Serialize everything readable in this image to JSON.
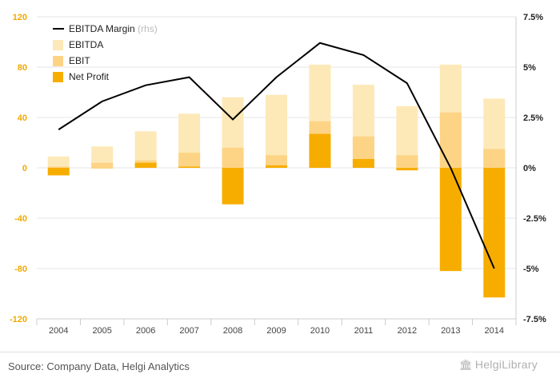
{
  "chart_data": {
    "type": "bar",
    "categories": [
      "2004",
      "2005",
      "2006",
      "2007",
      "2008",
      "2009",
      "2010",
      "2011",
      "2012",
      "2013",
      "2014"
    ],
    "series": [
      {
        "name": "EBITDA",
        "kind": "bar",
        "axis": "left",
        "color": "#fde9b8",
        "values": [
          9,
          17,
          29,
          43,
          56,
          58,
          82,
          66,
          49,
          82,
          55
        ]
      },
      {
        "name": "EBIT",
        "kind": "bar",
        "axis": "left",
        "color": "#fdd486",
        "values": [
          1,
          4,
          6,
          12,
          16,
          10,
          37,
          25,
          10,
          44,
          15
        ]
      },
      {
        "name": "Net Profit",
        "kind": "bar",
        "axis": "left",
        "color": "#f7ad00",
        "values": [
          -6,
          0,
          4,
          1,
          -29,
          2,
          27,
          7,
          -2,
          -82,
          -103
        ]
      },
      {
        "name": "EBITDA Margin",
        "kind": "line",
        "axis": "right",
        "color": "#000000",
        "values": [
          1.9,
          3.3,
          4.1,
          4.5,
          2.4,
          4.5,
          6.2,
          5.6,
          4.2,
          0.0,
          -5.0
        ]
      }
    ],
    "legend": [
      {
        "label": "EBITDA Margin",
        "suffix": "(rhs)",
        "marker": "line",
        "color": "#000000"
      },
      {
        "label": "EBITDA",
        "marker": "box",
        "color": "#fde9b8"
      },
      {
        "label": "EBIT",
        "marker": "box",
        "color": "#fdd486"
      },
      {
        "label": "Net Profit",
        "marker": "box",
        "color": "#f7ad00"
      }
    ],
    "left_axis": {
      "ylim": [
        -120,
        120
      ],
      "ticks": [
        120,
        80,
        40,
        0,
        -40,
        -80,
        -120
      ],
      "tick_labels": [
        "120",
        "80",
        "40",
        "0",
        "-40",
        "-80",
        "-120"
      ],
      "color": "#f2a900"
    },
    "right_axis": {
      "ylim": [
        -7.5,
        7.5
      ],
      "ticks": [
        7.5,
        5,
        2.5,
        0,
        -2.5,
        -5,
        -7.5
      ],
      "tick_labels": [
        "7.5%",
        "5%",
        "2.5%",
        "0%",
        "-2.5%",
        "-5%",
        "-7.5%"
      ],
      "color": "#222222"
    },
    "grid": true,
    "legend_position": "top-left"
  },
  "footer": {
    "source": "Source: Company Data, Helgi Analytics",
    "logo": "HelgiLibrary"
  }
}
